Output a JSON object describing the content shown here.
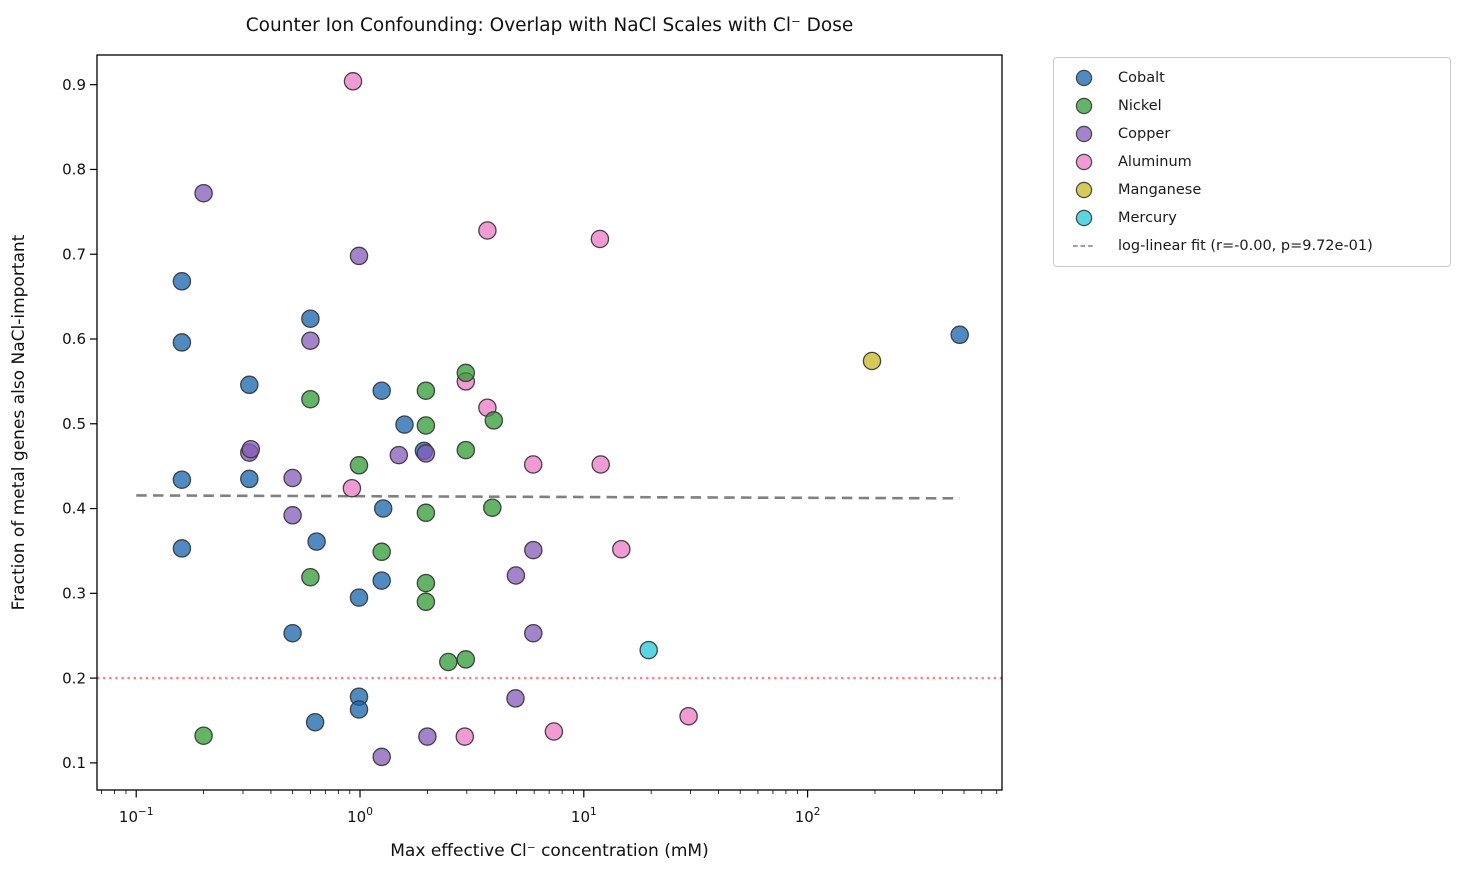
{
  "title": "Counter Ion Confounding: Overlap with NaCl Scales with Cl⁻ Dose",
  "axes": {
    "xlabel": "Max effective Cl⁻ concentration (mM)",
    "ylabel": "Fraction of metal genes also NaCl-important",
    "x_scale": "log",
    "xlim": [
      0.0668,
      739
    ],
    "ylim": [
      0.068,
      0.935
    ],
    "x_major_ticks": [
      {
        "value": 0.1,
        "base": "10",
        "exponent": "−1"
      },
      {
        "value": 1,
        "base": "10",
        "exponent": "0"
      },
      {
        "value": 10,
        "base": "10",
        "exponent": "1"
      },
      {
        "value": 100,
        "base": "10",
        "exponent": "2"
      }
    ],
    "y_ticks": [
      0.1,
      0.2,
      0.3,
      0.4,
      0.5,
      0.6,
      0.7,
      0.8,
      0.9
    ],
    "frame_color": "#000000",
    "background_color": "#ffffff"
  },
  "chart_data": {
    "type": "scatter",
    "marker_alpha": 0.75,
    "marker_edge_color": "#3a3a3a",
    "series": [
      {
        "name": "Cobalt",
        "color": "#1164ae",
        "points": [
          [
            0.16,
            0.668
          ],
          [
            0.16,
            0.596
          ],
          [
            0.16,
            0.434
          ],
          [
            0.16,
            0.353
          ],
          [
            0.32,
            0.546
          ],
          [
            0.32,
            0.435
          ],
          [
            0.5,
            0.253
          ],
          [
            0.6,
            0.624
          ],
          [
            0.64,
            0.361
          ],
          [
            0.63,
            0.148
          ],
          [
            0.99,
            0.295
          ],
          [
            0.99,
            0.178
          ],
          [
            0.99,
            0.163
          ],
          [
            1.25,
            0.539
          ],
          [
            1.25,
            0.315
          ],
          [
            1.27,
            0.4
          ],
          [
            1.58,
            0.499
          ],
          [
            1.93,
            0.468
          ],
          [
            478,
            0.605
          ]
        ]
      },
      {
        "name": "Nickel",
        "color": "#2e9c32",
        "points": [
          [
            0.2,
            0.132
          ],
          [
            0.6,
            0.529
          ],
          [
            0.6,
            0.319
          ],
          [
            0.99,
            0.451
          ],
          [
            1.25,
            0.349
          ],
          [
            1.97,
            0.539
          ],
          [
            1.97,
            0.498
          ],
          [
            1.97,
            0.395
          ],
          [
            1.97,
            0.312
          ],
          [
            1.97,
            0.29
          ],
          [
            2.48,
            0.219
          ],
          [
            2.97,
            0.56
          ],
          [
            2.97,
            0.469
          ],
          [
            2.97,
            0.222
          ],
          [
            3.96,
            0.504
          ],
          [
            3.9,
            0.401
          ]
        ]
      },
      {
        "name": "Copper",
        "color": "#845aba",
        "points": [
          [
            0.2,
            0.772
          ],
          [
            0.32,
            0.466
          ],
          [
            0.325,
            0.47
          ],
          [
            0.5,
            0.436
          ],
          [
            0.5,
            0.392
          ],
          [
            0.6,
            0.598
          ],
          [
            0.99,
            0.698
          ],
          [
            1.25,
            0.107
          ],
          [
            1.49,
            0.463
          ],
          [
            1.97,
            0.465
          ],
          [
            2.0,
            0.131
          ],
          [
            4.97,
            0.321
          ],
          [
            4.95,
            0.176
          ],
          [
            5.95,
            0.351
          ],
          [
            5.95,
            0.253
          ]
        ]
      },
      {
        "name": "Aluminum",
        "color": "#ed78c4",
        "points": [
          [
            0.93,
            0.904
          ],
          [
            0.92,
            0.424
          ],
          [
            2.97,
            0.55
          ],
          [
            2.94,
            0.131
          ],
          [
            3.71,
            0.728
          ],
          [
            3.71,
            0.519
          ],
          [
            5.94,
            0.452
          ],
          [
            7.35,
            0.137
          ],
          [
            11.8,
            0.718
          ],
          [
            11.9,
            0.452
          ],
          [
            14.7,
            0.352
          ],
          [
            29.4,
            0.155
          ]
        ]
      },
      {
        "name": "Manganese",
        "color": "#c5b81c",
        "points": [
          [
            194,
            0.574
          ]
        ]
      },
      {
        "name": "Mercury",
        "color": "#1dc9d9",
        "points": [
          [
            19.5,
            0.233
          ]
        ]
      }
    ],
    "reference_lines": [
      {
        "name": "log-linear-fit",
        "label": "log-linear fit (r=-0.00, p=9.72e-01)",
        "style": "dashed",
        "color": "#808080",
        "x_start": 0.1,
        "y_start": 0.4155,
        "x_end": 478,
        "y_end": 0.412
      },
      {
        "name": "threshold",
        "label": "",
        "style": "dotted",
        "color": "#ff8080",
        "y": 0.2
      }
    ],
    "legend": {
      "items": [
        {
          "name": "Cobalt",
          "type": "marker"
        },
        {
          "name": "Nickel",
          "type": "marker"
        },
        {
          "name": "Copper",
          "type": "marker"
        },
        {
          "name": "Aluminum",
          "type": "marker"
        },
        {
          "name": "Manganese",
          "type": "marker"
        },
        {
          "name": "Mercury",
          "type": "marker"
        },
        {
          "name": "log-linear fit (r=-0.00, p=9.72e-01)",
          "type": "dashed-line",
          "color": "#808080"
        }
      ],
      "position": "outside-upper-right"
    }
  }
}
